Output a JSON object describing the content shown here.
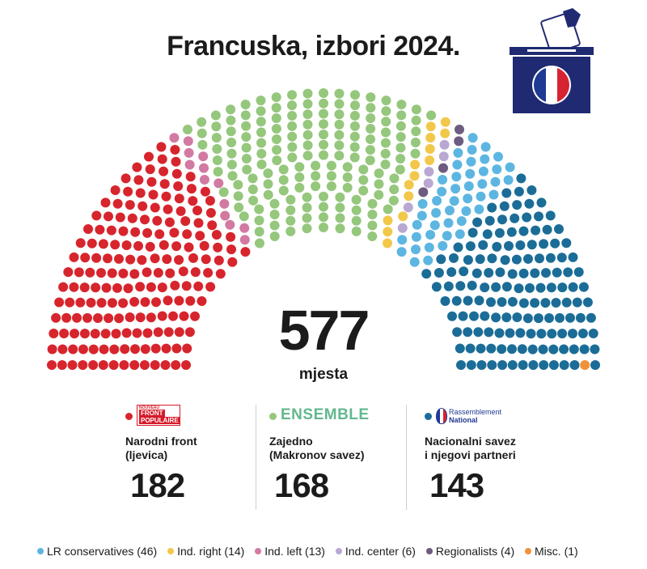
{
  "title": "Francuska, izbori 2024.",
  "icons": {
    "ballot": "ballot-box-french-flag-icon"
  },
  "colors": {
    "nfp": "#d7252d",
    "ind_left": "#d27aa2",
    "ensemble": "#95c77c",
    "ind_right": "#f2c84b",
    "ind_center": "#b8a8d2",
    "regionalists": "#6e5b80",
    "lr": "#5db6e1",
    "rn": "#1b6d97",
    "misc": "#f0923a"
  },
  "chart_data": {
    "type": "parliament",
    "total": 577,
    "order": [
      "nfp",
      "ind_left",
      "ensemble",
      "ind_right",
      "ind_center",
      "regionalists",
      "lr",
      "rn",
      "misc"
    ],
    "groups": [
      {
        "key": "nfp",
        "seats": 182
      },
      {
        "key": "ind_left",
        "seats": 13
      },
      {
        "key": "ensemble",
        "seats": 168
      },
      {
        "key": "ind_right",
        "seats": 14
      },
      {
        "key": "ind_center",
        "seats": 6
      },
      {
        "key": "regionalists",
        "seats": 4
      },
      {
        "key": "lr",
        "seats": 46
      },
      {
        "key": "rn",
        "seats": 143
      },
      {
        "key": "misc",
        "seats": 1
      }
    ]
  },
  "center": {
    "number": "577",
    "label": "mjesta"
  },
  "blocs": [
    {
      "key": "nfp",
      "logo_small": "NOUVEAU",
      "logo_line1": "FRONT",
      "logo_line2": "POPULAIRE",
      "name_line1": "Narodni front",
      "name_line2": "(ljevica)",
      "seats": "182"
    },
    {
      "key": "ensemble",
      "logo": "ENSEMBLE",
      "name_line1": "Zajedno",
      "name_line2": "(Makronov savez)",
      "seats": "168"
    },
    {
      "key": "rn",
      "logo_line1": "Rassemblement",
      "logo_line2": "National",
      "name_line1": "Nacionalni savez",
      "name_line2": "i njegovi partneri",
      "seats": "143"
    }
  ],
  "legend": [
    {
      "key": "lr",
      "label": "LR conservatives (46)"
    },
    {
      "key": "ind_right",
      "label": "Ind. right (14)"
    },
    {
      "key": "ind_left",
      "label": "Ind. left (13)"
    },
    {
      "key": "ind_center",
      "label": "Ind. center (6)"
    },
    {
      "key": "regionalists",
      "label": "Regionalists (4)"
    },
    {
      "key": "misc",
      "label": "Misc. (1)"
    }
  ]
}
